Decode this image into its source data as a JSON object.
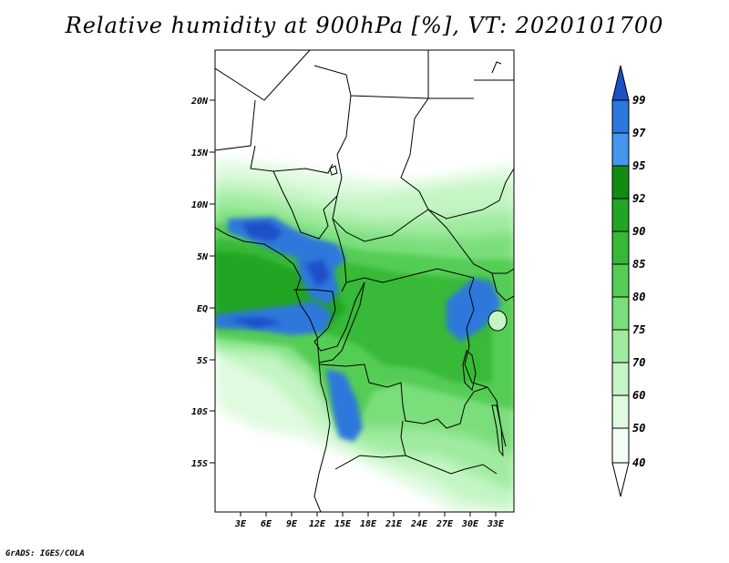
{
  "title": "Relative humidity at 900hPa [%], VT: 2020101700",
  "credit": "GrADS: IGES/COLA",
  "map": {
    "lat_labels": [
      "20N",
      "15N",
      "10N",
      "5N",
      "EQ",
      "5S",
      "10S",
      "15S"
    ],
    "lon_labels": [
      "3E",
      "6E",
      "9E",
      "12E",
      "15E",
      "18E",
      "21E",
      "24E",
      "27E",
      "30E",
      "33E"
    ]
  },
  "colorbar": {
    "labels": [
      "99",
      "97",
      "95",
      "92",
      "90",
      "85",
      "80",
      "75",
      "70",
      "60",
      "50",
      "40"
    ],
    "colors": [
      "#1e50c8",
      "#2d78dc",
      "#4696ee",
      "#118c11",
      "#22a522",
      "#37b937",
      "#55cd55",
      "#7ade7a",
      "#a0eba0",
      "#c4f5c4",
      "#e0fae0",
      "#ffffff"
    ]
  }
}
